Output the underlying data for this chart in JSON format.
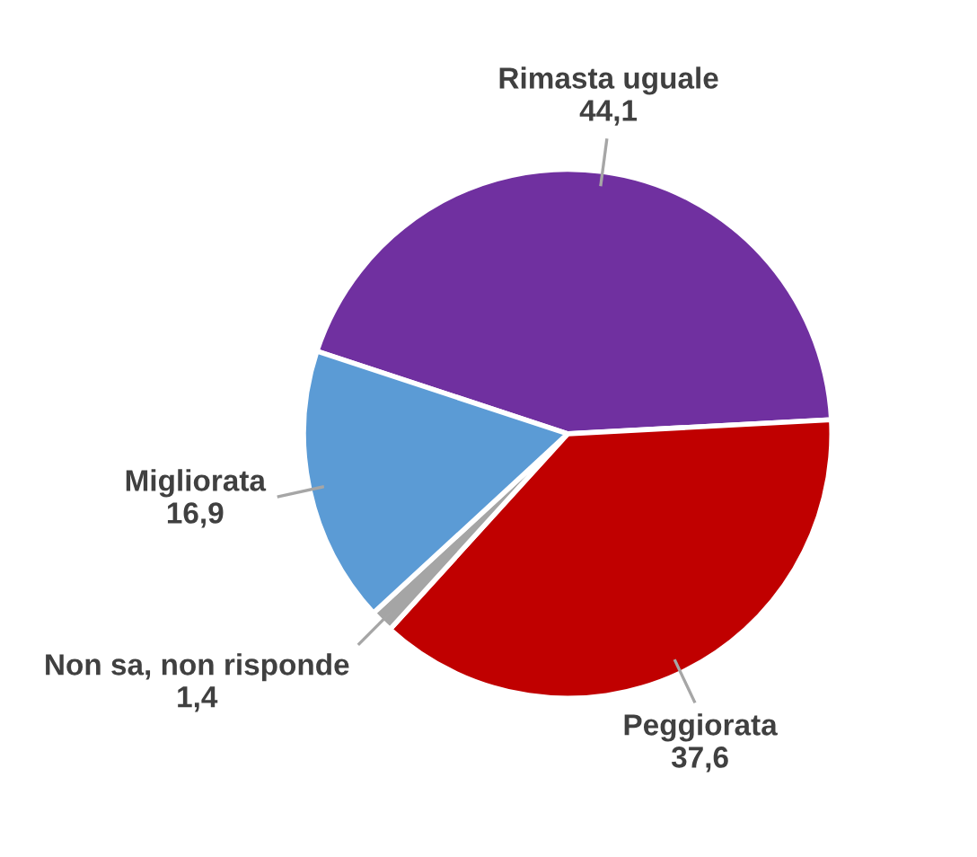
{
  "chart_data": {
    "type": "pie",
    "categories": [
      "Rimasta uguale",
      "Peggiorata",
      "Non sa, non risponde",
      "Migliorata"
    ],
    "values": [
      44.1,
      37.6,
      1.4,
      16.9
    ],
    "value_labels": [
      "44,1",
      "37,6",
      "1,4",
      "16,9"
    ],
    "colors": [
      "#7030a0",
      "#c00000",
      "#a5a5a5",
      "#5b9bd5"
    ],
    "legend": false
  }
}
